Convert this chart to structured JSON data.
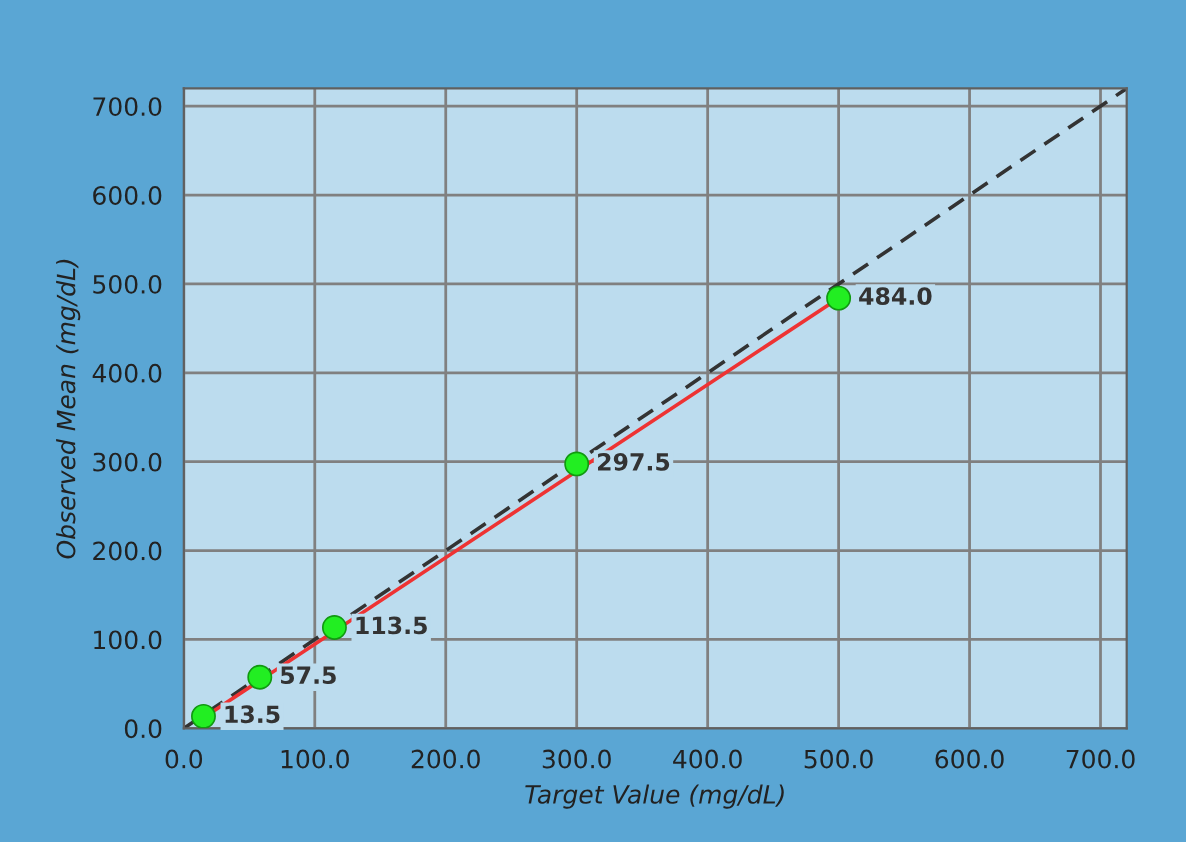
{
  "chart_data": {
    "type": "scatter",
    "xlabel": "Target Value (mg/dL)",
    "ylabel": "Observed Mean (mg/dL)",
    "xlim": [
      0,
      720
    ],
    "ylim": [
      0,
      720
    ],
    "xticks": [
      {
        "value": 0,
        "label": "0.0"
      },
      {
        "value": 100,
        "label": "100.0"
      },
      {
        "value": 200,
        "label": "200.0"
      },
      {
        "value": 300,
        "label": "300.0"
      },
      {
        "value": 400,
        "label": "400.0"
      },
      {
        "value": 500,
        "label": "500.0"
      },
      {
        "value": 600,
        "label": "600.0"
      },
      {
        "value": 700,
        "label": "700.0"
      }
    ],
    "yticks": [
      {
        "value": 0,
        "label": "0.0"
      },
      {
        "value": 100,
        "label": "100.0"
      },
      {
        "value": 200,
        "label": "200.0"
      },
      {
        "value": 300,
        "label": "300.0"
      },
      {
        "value": 400,
        "label": "400.0"
      },
      {
        "value": 500,
        "label": "500.0"
      },
      {
        "value": 600,
        "label": "600.0"
      },
      {
        "value": 700,
        "label": "700.0"
      }
    ],
    "grid": true,
    "legend": false,
    "series": [
      {
        "type": "line",
        "color": "#333333",
        "line_style": "dashed",
        "marker": "none",
        "x": [
          0,
          720
        ],
        "values": [
          0,
          720
        ]
      },
      {
        "type": "line",
        "color": "#ee3333",
        "line_style": "solid",
        "marker": "none",
        "x": [
          15,
          500
        ],
        "values": [
          12,
          484
        ]
      },
      {
        "color": "#22ee22",
        "marker": "circle",
        "data_labels": true,
        "value_labels": [
          "13.5",
          "57.5",
          "113.5",
          "297.5",
          "484.0"
        ],
        "x": [
          15,
          58,
          115,
          300,
          500
        ],
        "values": [
          13.5,
          57.5,
          113.5,
          297.5,
          484.0
        ]
      }
    ]
  }
}
